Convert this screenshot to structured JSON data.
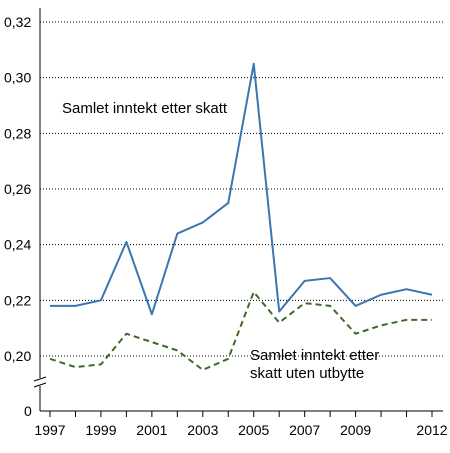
{
  "chart_data": {
    "type": "line",
    "x": [
      1997,
      1998,
      1999,
      2000,
      2001,
      2002,
      2003,
      2004,
      2005,
      2006,
      2007,
      2008,
      2009,
      2010,
      2011,
      2012
    ],
    "x_tick_labels": [
      "1997",
      "1999",
      "2001",
      "2003",
      "2005",
      "2007",
      "2009",
      "2012"
    ],
    "x_tick_values": [
      1997,
      1999,
      2001,
      2003,
      2005,
      2007,
      2009,
      2012
    ],
    "y_tick_values": [
      0.2,
      0.22,
      0.24,
      0.26,
      0.28,
      0.3,
      0.32
    ],
    "y_tick_labels": [
      "0,20",
      "0,22",
      "0,24",
      "0,26",
      "0,28",
      "0,30",
      "0,32"
    ],
    "y_zero_label": "0",
    "ylim": [
      0.2,
      0.32
    ],
    "xlim": [
      1997,
      2012
    ],
    "axis_break": true,
    "grid": "horizontal-dotted",
    "series": [
      {
        "name": "Samlet inntekt etter skatt",
        "color": "#3a76b0",
        "style": "solid",
        "values": [
          0.218,
          0.218,
          0.22,
          0.241,
          0.215,
          0.244,
          0.248,
          0.255,
          0.305,
          0.216,
          0.227,
          0.228,
          0.218,
          0.222,
          0.224,
          0.222
        ]
      },
      {
        "name": "Samlet inntekt etter skatt uten utbytte",
        "color": "#3e6b2a",
        "style": "dashed",
        "values": [
          0.199,
          0.196,
          0.197,
          0.208,
          0.205,
          0.202,
          0.195,
          0.199,
          0.223,
          0.212,
          0.219,
          0.218,
          0.208,
          0.211,
          0.213,
          0.213
        ]
      }
    ],
    "annotations": [
      {
        "lines": [
          "Samlet inntekt etter skatt"
        ]
      },
      {
        "lines": [
          "Samlet inntekt etter",
          "skatt uten utbytte"
        ]
      }
    ]
  }
}
